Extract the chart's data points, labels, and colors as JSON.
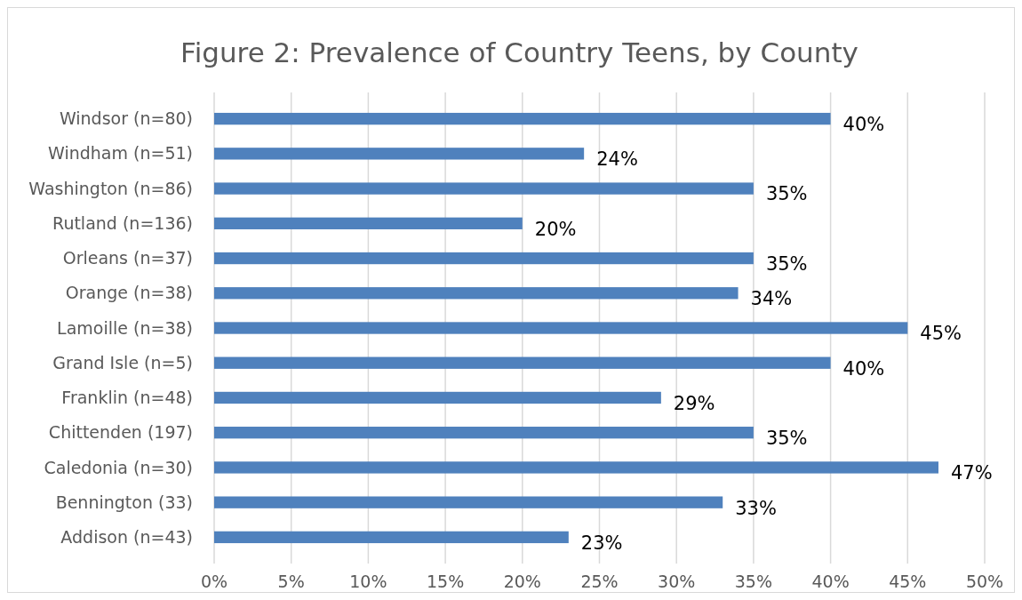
{
  "chart_data": {
    "type": "bar",
    "orientation": "horizontal",
    "title": "Figure 2: Prevalence of Country Teens, by County",
    "categories": [
      "Windsor (n=80)",
      "Windham (n=51)",
      "Washington (n=86)",
      "Rutland (n=136)",
      "Orleans (n=37)",
      "Orange (n=38)",
      "Lamoille (n=38)",
      "Grand Isle (n=5)",
      "Franklin (n=48)",
      "Chittenden (197)",
      "Caledonia (n=30)",
      "Bennington (33)",
      "Addison (n=43)"
    ],
    "values": [
      40,
      24,
      35,
      20,
      35,
      34,
      45,
      40,
      29,
      35,
      47,
      33,
      23
    ],
    "value_labels": [
      "40%",
      "24%",
      "35%",
      "20%",
      "35%",
      "34%",
      "45%",
      "40%",
      "29%",
      "35%",
      "47%",
      "33%",
      "23%"
    ],
    "color": "#4f81bd",
    "xlim": [
      0,
      50
    ],
    "xticks": [
      {
        "value": 0,
        "label": "0%"
      },
      {
        "value": 5,
        "label": "5%"
      },
      {
        "value": 10,
        "label": "10%"
      },
      {
        "value": 15,
        "label": "15%"
      },
      {
        "value": 20,
        "label": "20%"
      },
      {
        "value": 25,
        "label": "25%"
      },
      {
        "value": 30,
        "label": "30%"
      },
      {
        "value": 35,
        "label": "35%"
      },
      {
        "value": 40,
        "label": "40%"
      },
      {
        "value": 45,
        "label": "45%"
      },
      {
        "value": 50,
        "label": "50%"
      }
    ],
    "grid": "x"
  }
}
